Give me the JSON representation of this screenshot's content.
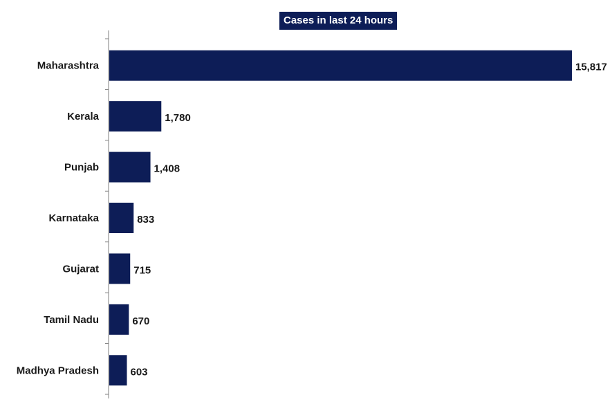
{
  "chart_data": {
    "type": "bar",
    "orientation": "horizontal",
    "title": "Cases in last 24 hours",
    "categories": [
      "Maharashtra",
      "Kerala",
      "Punjab",
      "Karnataka",
      "Gujarat",
      "Tamil Nadu",
      "Madhya Pradesh"
    ],
    "values": [
      15817,
      1780,
      1408,
      833,
      715,
      670,
      603
    ],
    "data_labels": [
      "15,817",
      "1,780",
      "1,408",
      "833",
      "715",
      "670",
      "603"
    ],
    "xlim": [
      0,
      15817
    ],
    "xlabel": "",
    "ylabel": "",
    "grid": false,
    "legend": "none",
    "colors": {
      "bar": "#0d1d57",
      "title_background": "#0d1d57",
      "title_text": "#ffffff",
      "text": "#1a1a1a",
      "axis": "#7f7f7f"
    }
  }
}
